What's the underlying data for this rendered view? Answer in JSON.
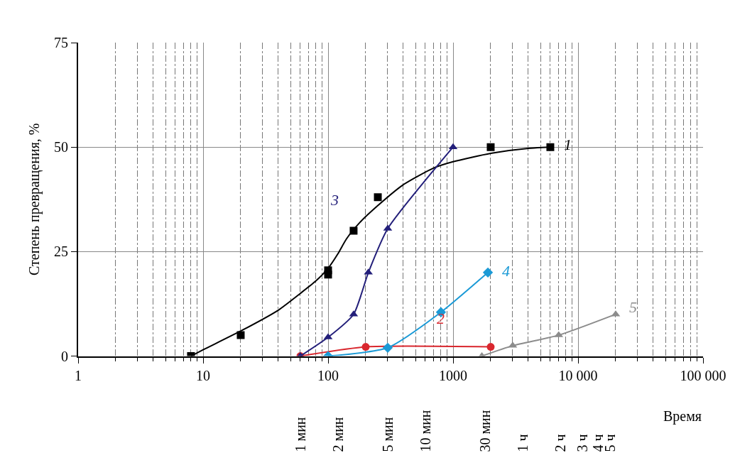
{
  "chart_data": {
    "type": "scatter",
    "xlabel": "Время",
    "ylabel": "Степень превращения, %",
    "log": "x",
    "grid": true,
    "legend": false,
    "xlim": [
      1,
      100000
    ],
    "xticks": [
      1,
      10,
      100,
      1000,
      {
        "value": 10000,
        "label": "10 000"
      },
      {
        "value": 100000,
        "label": "100 000"
      }
    ],
    "annotations": [
      "1 мин",
      "2 мин",
      "5 мин",
      "10 мин",
      "30 мин",
      "1 ч",
      "2 ч",
      "3 ч",
      "4 ч",
      "5 ч"
    ],
    "ylim": [
      0,
      75
    ],
    "yticks": [
      0,
      25,
      50,
      75
    ],
    "series": [
      {
        "name": "1",
        "color": "#000000",
        "marker": "square",
        "x": [
          8,
          20,
          100,
          100,
          160,
          250,
          2000,
          6000
        ],
        "values": [
          0,
          5,
          19.5,
          20.5,
          30,
          38,
          50,
          50
        ]
      },
      {
        "type": "line",
        "color": "#000000",
        "marker": "none",
        "x": [
          8,
          10,
          20,
          40,
          60,
          80,
          100,
          120,
          140,
          180,
          250,
          400,
          700,
          1000,
          2000,
          4000,
          6000
        ],
        "values": [
          0,
          1.5,
          6,
          11,
          15,
          18,
          21,
          24.5,
          28,
          32,
          36,
          41,
          45,
          46.5,
          48.5,
          49.7,
          50
        ]
      },
      {
        "name": "2",
        "type": "line",
        "color": "#d9272e",
        "marker": "circle",
        "x": [
          60,
          200,
          2000
        ],
        "values": [
          0,
          2.2,
          2.2
        ]
      },
      {
        "name": "3",
        "type": "line",
        "color": "#231f7a",
        "marker": "triangle",
        "x": [
          60,
          100,
          160,
          210,
          300,
          1000
        ],
        "values": [
          0,
          4.5,
          10,
          20,
          30.5,
          50
        ]
      },
      {
        "name": "4",
        "type": "line",
        "color": "#1b9ad6",
        "marker": "diamond",
        "x": [
          100,
          300,
          800,
          1900
        ],
        "values": [
          0,
          2,
          10.5,
          20
        ]
      },
      {
        "name": "5",
        "type": "line",
        "color": "#8c8c8c",
        "marker": "triangle",
        "x": [
          1700,
          3000,
          7000,
          20000
        ],
        "values": [
          0,
          2.5,
          5,
          10
        ]
      }
    ]
  }
}
